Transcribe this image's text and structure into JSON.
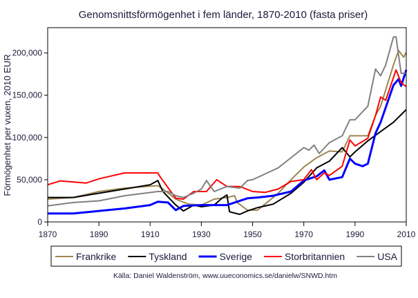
{
  "chart_data": {
    "type": "line",
    "title": "Genomsnittsförmögenhet i fem länder, 1870-2010 (fasta priser)",
    "xlabel": "",
    "ylabel": "Förmögenhet per vuxen, 2010 EUR",
    "xlim": [
      1870,
      2010
    ],
    "ylim": [
      0,
      230000
    ],
    "xticks": [
      1870,
      1890,
      1910,
      1930,
      1950,
      1970,
      1990,
      2010
    ],
    "yticks": [
      0,
      50000,
      100000,
      150000,
      200000
    ],
    "ytick_labels": [
      "0",
      "50,000",
      "100,000",
      "150,000",
      "200,000"
    ],
    "grid": false,
    "legend_position": "bottom",
    "source": "Källa: Daniel Waldenström, www.uueconomics.se/danielw/SNWD.htm",
    "series": [
      {
        "name": "Frankrike",
        "color": "#9c8550",
        "width": 2,
        "points": [
          [
            1870,
            27000
          ],
          [
            1880,
            29000
          ],
          [
            1890,
            36000
          ],
          [
            1900,
            40000
          ],
          [
            1913,
            43000
          ],
          [
            1915,
            39000
          ],
          [
            1920,
            27000
          ],
          [
            1925,
            21000
          ],
          [
            1930,
            20000
          ],
          [
            1935,
            27000
          ],
          [
            1940,
            29000
          ],
          [
            1943,
            31000
          ],
          [
            1944,
            23000
          ],
          [
            1948,
            14000
          ],
          [
            1952,
            14000
          ],
          [
            1960,
            34000
          ],
          [
            1965,
            50000
          ],
          [
            1970,
            65000
          ],
          [
            1975,
            76000
          ],
          [
            1980,
            84000
          ],
          [
            1985,
            83000
          ],
          [
            1988,
            102000
          ],
          [
            1990,
            102000
          ],
          [
            1995,
            102000
          ],
          [
            1998,
            126000
          ],
          [
            2000,
            137000
          ],
          [
            2005,
            186000
          ],
          [
            2007,
            203000
          ],
          [
            2009,
            195000
          ],
          [
            2010,
            201000
          ]
        ]
      },
      {
        "name": "Tyskland",
        "color": "#000000",
        "width": 2,
        "points": [
          [
            1870,
            29000
          ],
          [
            1880,
            29000
          ],
          [
            1890,
            34000
          ],
          [
            1900,
            39000
          ],
          [
            1910,
            44000
          ],
          [
            1913,
            49000
          ],
          [
            1915,
            36000
          ],
          [
            1920,
            20000
          ],
          [
            1923,
            13000
          ],
          [
            1927,
            20000
          ],
          [
            1930,
            18000
          ],
          [
            1935,
            20000
          ],
          [
            1938,
            28000
          ],
          [
            1940,
            32000
          ],
          [
            1941,
            12000
          ],
          [
            1945,
            9000
          ],
          [
            1948,
            13000
          ],
          [
            1952,
            17000
          ],
          [
            1958,
            21000
          ],
          [
            1965,
            34000
          ],
          [
            1970,
            47000
          ],
          [
            1975,
            64000
          ],
          [
            1980,
            72000
          ],
          [
            1985,
            88000
          ],
          [
            1988,
            77000
          ],
          [
            1990,
            83000
          ],
          [
            1995,
            96000
          ],
          [
            2000,
            107000
          ],
          [
            2005,
            118000
          ],
          [
            2010,
            133000
          ]
        ]
      },
      {
        "name": "Sverige",
        "color": "#0000ff",
        "width": 3,
        "points": [
          [
            1870,
            10000
          ],
          [
            1880,
            10000
          ],
          [
            1890,
            13000
          ],
          [
            1900,
            16000
          ],
          [
            1910,
            20000
          ],
          [
            1913,
            24000
          ],
          [
            1917,
            23000
          ],
          [
            1920,
            14000
          ],
          [
            1923,
            19000
          ],
          [
            1930,
            20000
          ],
          [
            1935,
            20000
          ],
          [
            1940,
            20000
          ],
          [
            1943,
            23000
          ],
          [
            1948,
            28000
          ],
          [
            1952,
            29000
          ],
          [
            1958,
            31000
          ],
          [
            1965,
            36000
          ],
          [
            1970,
            49000
          ],
          [
            1975,
            54000
          ],
          [
            1978,
            61000
          ],
          [
            1980,
            50000
          ],
          [
            1985,
            53000
          ],
          [
            1988,
            75000
          ],
          [
            1990,
            69000
          ],
          [
            1993,
            66000
          ],
          [
            1995,
            69000
          ],
          [
            1998,
            105000
          ],
          [
            2000,
            118000
          ],
          [
            2005,
            162000
          ],
          [
            2007,
            169000
          ],
          [
            2008,
            161000
          ],
          [
            2010,
            180000
          ]
        ]
      },
      {
        "name": "Storbritannien",
        "color": "#ff0000",
        "width": 2,
        "points": [
          [
            1870,
            44000
          ],
          [
            1875,
            48600
          ],
          [
            1885,
            46000
          ],
          [
            1890,
            51000
          ],
          [
            1900,
            58000
          ],
          [
            1913,
            58000
          ],
          [
            1914,
            53000
          ],
          [
            1920,
            28000
          ],
          [
            1923,
            27000
          ],
          [
            1927,
            36000
          ],
          [
            1932,
            36000
          ],
          [
            1936,
            50000
          ],
          [
            1940,
            42000
          ],
          [
            1945,
            42000
          ],
          [
            1950,
            36000
          ],
          [
            1955,
            35000
          ],
          [
            1960,
            39000
          ],
          [
            1965,
            48000
          ],
          [
            1970,
            50000
          ],
          [
            1973,
            62000
          ],
          [
            1975,
            50000
          ],
          [
            1978,
            58000
          ],
          [
            1980,
            55000
          ],
          [
            1985,
            66000
          ],
          [
            1988,
            97000
          ],
          [
            1990,
            90000
          ],
          [
            1995,
            99000
          ],
          [
            1998,
            126000
          ],
          [
            2000,
            148000
          ],
          [
            2002,
            144000
          ],
          [
            2006,
            180000
          ],
          [
            2008,
            165000
          ],
          [
            2010,
            160000
          ]
        ]
      },
      {
        "name": "USA",
        "color": "#808080",
        "width": 2,
        "points": [
          [
            1870,
            19000
          ],
          [
            1880,
            23000
          ],
          [
            1890,
            25000
          ],
          [
            1900,
            31000
          ],
          [
            1913,
            36000
          ],
          [
            1917,
            36000
          ],
          [
            1920,
            31000
          ],
          [
            1923,
            29000
          ],
          [
            1927,
            34000
          ],
          [
            1930,
            39000
          ],
          [
            1932,
            49000
          ],
          [
            1935,
            36000
          ],
          [
            1940,
            42000
          ],
          [
            1945,
            40000
          ],
          [
            1948,
            49000
          ],
          [
            1950,
            50000
          ],
          [
            1955,
            57000
          ],
          [
            1960,
            64000
          ],
          [
            1965,
            76000
          ],
          [
            1970,
            88000
          ],
          [
            1972,
            85000
          ],
          [
            1974,
            91000
          ],
          [
            1976,
            81000
          ],
          [
            1980,
            94000
          ],
          [
            1985,
            102000
          ],
          [
            1988,
            121000
          ],
          [
            1990,
            121000
          ],
          [
            1995,
            137000
          ],
          [
            1998,
            181000
          ],
          [
            2000,
            173000
          ],
          [
            2002,
            186000
          ],
          [
            2005,
            219000
          ],
          [
            2006,
            219000
          ],
          [
            2008,
            176000
          ],
          [
            2010,
            176000
          ]
        ]
      }
    ]
  }
}
